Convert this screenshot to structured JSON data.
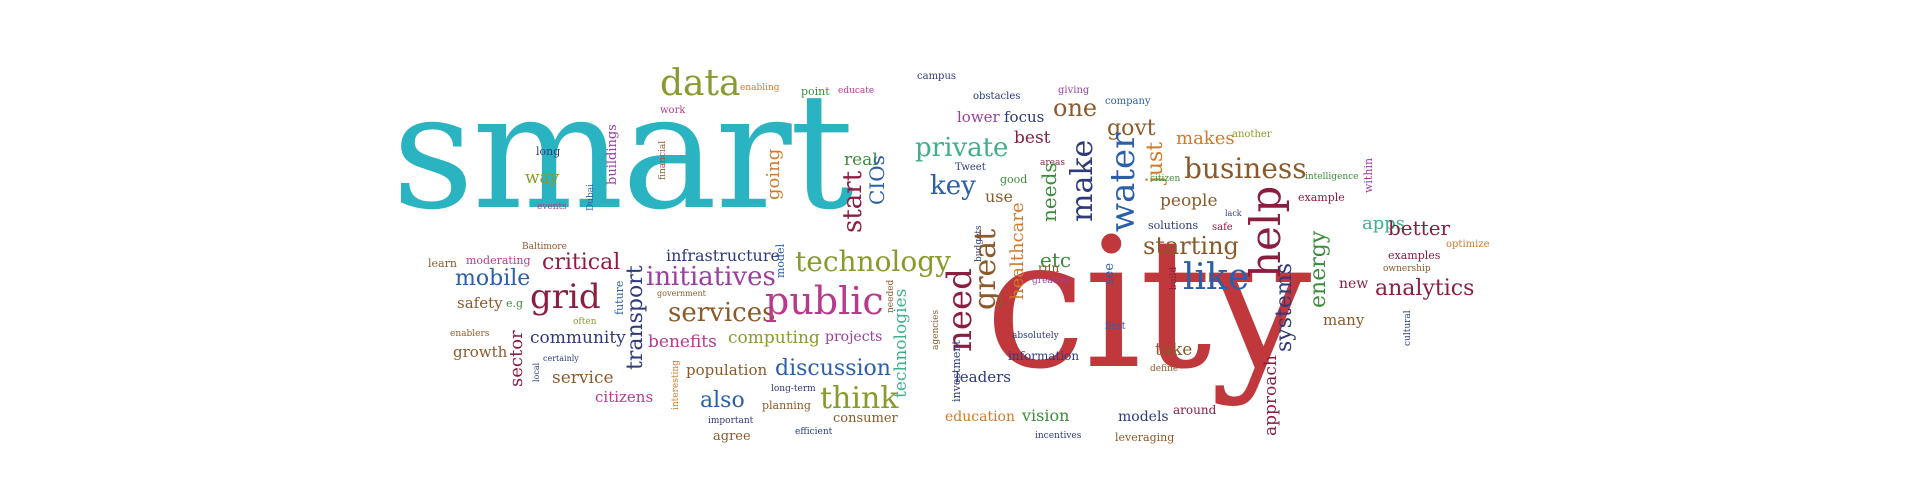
{
  "palette": {
    "teal": "#2ab3c0",
    "red": "#c0383c",
    "olive": "#8a9a2e",
    "brown": "#8b5a2b",
    "darkred": "#8b1e3f",
    "blue": "#2b5fa8",
    "purple": "#9a3fa0",
    "green": "#3c8c3c",
    "orange": "#d07a2b",
    "gray": "#7a7a7a",
    "navy": "#2e3a7a",
    "magenta": "#b83a8c",
    "mint": "#3fb08a"
  },
  "words": {
    "smart": "smart",
    "city": "city",
    "data": "data",
    "enabling": "enabling",
    "point": "point",
    "educate": "educate",
    "campus": "campus",
    "obstacles": "obstacles",
    "giving": "giving",
    "company": "company",
    "work": "work",
    "financial": "financial",
    "lower": "lower",
    "focus": "focus",
    "one": "one",
    "best": "best",
    "private": "private",
    "govt": "govt",
    "makes": "makes",
    "another": "another",
    "long": "long",
    "buildings": "buildings",
    "going": "going",
    "real": "real",
    "Tweet": "Tweet",
    "key": "key",
    "good": "good",
    "areas": "areas",
    "make": "make",
    "water": "water",
    "just": "just",
    "business": "business",
    "intelligence": "intelligence",
    "within": "within",
    "way": "way",
    "Dubai": "Dubai",
    "start": "start",
    "CIOs": "CIOs",
    "use": "use",
    "needs": "needs",
    "citizen": "citizen",
    "people": "people",
    "example": "example",
    "events": "events",
    "healthcare": "healthcare",
    "lack": "lack",
    "help": "help",
    "apps": "apps",
    "Baltimore": "Baltimore",
    "budgets": "budgets",
    "solutions": "solutions",
    "safe": "safe",
    "starting": "starting",
    "energy": "energy",
    "better": "better",
    "learn": "learn",
    "moderating": "moderating",
    "critical": "critical",
    "infrastructure": "infrastructure",
    "model": "model",
    "technology": "technology",
    "great": "great",
    "etc": "etc",
    "run": "run",
    "examples": "examples",
    "optimize": "optimize",
    "mobile": "mobile",
    "initiatives": "initiatives",
    "greatest": "greatest",
    "see": "see",
    "build": "build",
    "like": "like",
    "systems": "systems",
    "ownership": "ownership",
    "new": "new",
    "analytics": "analytics",
    "safety": "safety",
    "eg": "e.g",
    "grid": "grid",
    "transport": "transport",
    "government": "government",
    "services": "services",
    "public": "public",
    "needed": "needed",
    "need": "need",
    "first": "first",
    "enablers": "enablers",
    "often": "often",
    "future": "future",
    "community": "community",
    "agencies": "agencies",
    "technologies": "technologies",
    "absolutely": "absolutely",
    "cultural": "cultural",
    "many": "many",
    "growth": "growth",
    "certainly": "certainly",
    "sector": "sector",
    "benefits": "benefits",
    "computing": "computing",
    "projects": "projects",
    "information": "information",
    "take": "take",
    "local": "local",
    "discussion": "discussion",
    "investment": "investment",
    "define": "define",
    "approach": "approach",
    "service": "service",
    "interesting": "interesting",
    "population": "population",
    "leaders": "leaders",
    "citizens": "citizens",
    "longterm": "long-term",
    "think": "think",
    "also": "also",
    "planning": "planning",
    "around": "around",
    "important": "important",
    "consumer": "consumer",
    "education": "education",
    "vision": "vision",
    "models": "models",
    "agree": "agree",
    "efficient": "efficient",
    "incentives": "incentives",
    "leveraging": "leveraging"
  }
}
